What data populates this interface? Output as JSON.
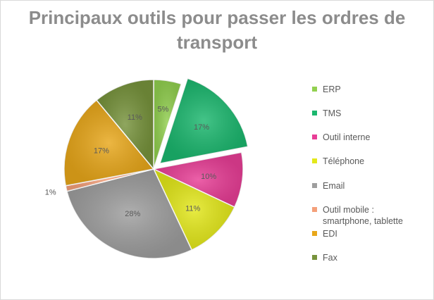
{
  "chart_data": {
    "type": "pie",
    "title": "Principaux outils pour passer les ordres de transport",
    "slices": [
      {
        "name": "ERP",
        "value": 5,
        "label": "5%",
        "color": "#92d050"
      },
      {
        "name": "TMS",
        "value": 17,
        "label": "17%",
        "color": "#1bb76e",
        "exploded": true
      },
      {
        "name": "Outil interne",
        "value": 10,
        "label": "10%",
        "color": "#e83e96"
      },
      {
        "name": "Téléphone",
        "value": 11,
        "label": "11%",
        "color": "#e3e81a"
      },
      {
        "name": "Email",
        "value": 28,
        "label": "28%",
        "color": "#9e9e9e"
      },
      {
        "name": "Outil mobile : smartphone, tablette",
        "value": 1,
        "label": "1%",
        "color": "#f4a07a"
      },
      {
        "name": "EDI",
        "value": 17,
        "label": "17%",
        "color": "#e8a71a"
      },
      {
        "name": "Fax",
        "value": 11,
        "label": "11%",
        "color": "#77933c"
      }
    ],
    "legend": {
      "position": "right"
    },
    "legend_lines": [
      [
        "ERP"
      ],
      [
        "TMS"
      ],
      [
        "Outil interne"
      ],
      [
        "Téléphone"
      ],
      [
        "Email"
      ],
      [
        "Outil mobile :",
        "smartphone, tablette"
      ],
      [
        "EDI"
      ],
      [
        "Fax"
      ]
    ]
  }
}
